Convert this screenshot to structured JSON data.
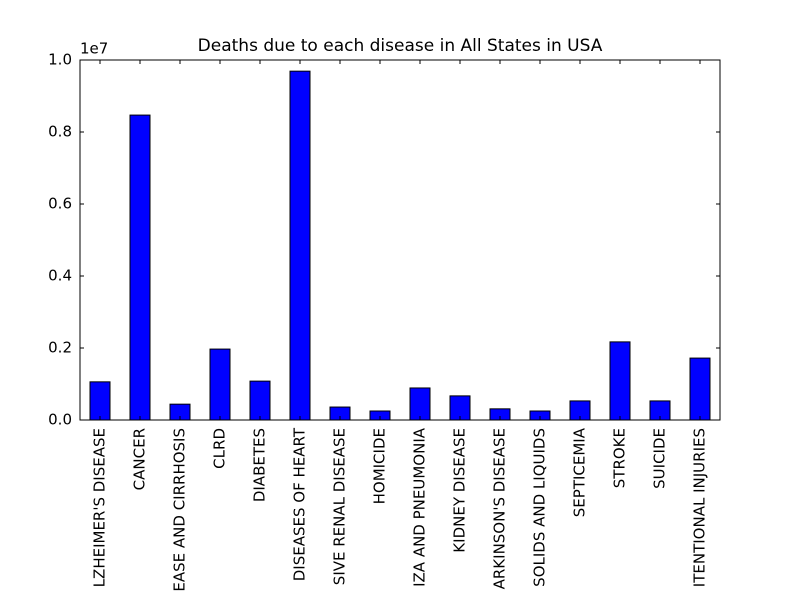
{
  "chart_data": {
    "type": "bar",
    "title": "Deaths due to each disease in All States in USA",
    "y_offset_label": "1e7",
    "categories": [
      "LZHEIMER'S DISEASE",
      "CANCER",
      "EASE AND CIRRHOSIS",
      "CLRD",
      "DIABETES",
      "DISEASES OF HEART",
      "SIVE RENAL DISEASE",
      "HOMICIDE",
      "IZA AND PNEUMONIA",
      "KIDNEY DISEASE",
      "ARKINSON'S DISEASE",
      "SOLIDS AND LIQUIDS",
      "SEPTICEMIA",
      "STROKE",
      "SUICIDE",
      "ITENTIONAL INJURIES"
    ],
    "values": [
      1060000,
      8470000,
      440000,
      1970000,
      1080000,
      9690000,
      360000,
      250000,
      890000,
      670000,
      310000,
      250000,
      530000,
      2170000,
      530000,
      1720000
    ],
    "color": "#0000ff",
    "ylim": [
      0,
      10000000
    ],
    "yticks": [
      {
        "value": 0,
        "label": "0.0"
      },
      {
        "value": 2000000,
        "label": "0.2"
      },
      {
        "value": 4000000,
        "label": "0.4"
      },
      {
        "value": 6000000,
        "label": "0.6"
      },
      {
        "value": 8000000,
        "label": "0.8"
      },
      {
        "value": 10000000,
        "label": "1.0"
      }
    ],
    "grid": false
  }
}
